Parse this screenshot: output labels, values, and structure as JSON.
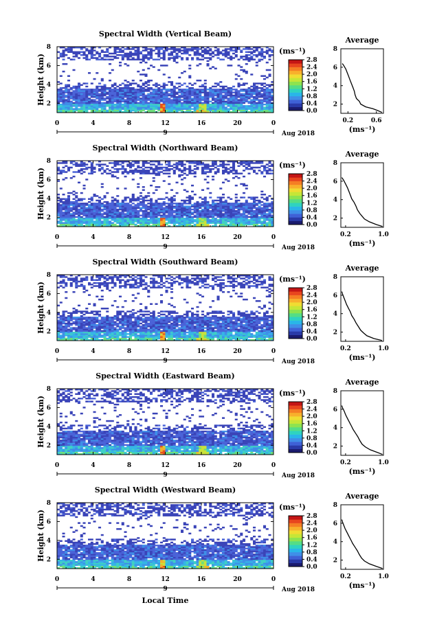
{
  "figure": {
    "xlabel": "Local Time"
  },
  "chart_data": [
    {
      "type": "heatmap",
      "title": "Spectral Width (Vertical Beam)",
      "ylabel": "Height (km)",
      "ylim": [
        1,
        8
      ],
      "yticks": [
        2,
        4,
        6,
        8
      ],
      "xlim": [
        0,
        24
      ],
      "xticks": [
        "0",
        "4",
        "8",
        "12",
        "16",
        "20",
        "0"
      ],
      "date_day": "9",
      "date_label": "Aug 2018",
      "colorbar": {
        "unit": "(ms⁻¹)",
        "ticks": [
          "0.0",
          "0.4",
          "0.8",
          "1.2",
          "1.6",
          "2.0",
          "2.4",
          "2.8"
        ]
      },
      "profile": {
        "title": "Average",
        "xlabel": "(ms⁻¹)",
        "xlim": [
          0.1,
          0.7
        ],
        "xticks": [
          "0.2",
          "0.6"
        ],
        "ylim": [
          1,
          8
        ],
        "yticks": [
          "2",
          "4",
          "6",
          "8"
        ],
        "points": [
          [
            0.68,
            1.1
          ],
          [
            0.62,
            1.3
          ],
          [
            0.55,
            1.5
          ],
          [
            0.45,
            1.7
          ],
          [
            0.38,
            2.0
          ],
          [
            0.36,
            2.3
          ],
          [
            0.32,
            2.6
          ],
          [
            0.3,
            3.0
          ],
          [
            0.29,
            3.4
          ],
          [
            0.27,
            3.8
          ],
          [
            0.25,
            4.2
          ],
          [
            0.23,
            4.6
          ],
          [
            0.21,
            5.0
          ],
          [
            0.19,
            5.4
          ],
          [
            0.17,
            5.8
          ],
          [
            0.14,
            6.2
          ],
          [
            0.12,
            6.4
          ]
        ]
      }
    },
    {
      "type": "heatmap",
      "title": "Spectral Width (Northward Beam)",
      "ylabel": "Height (km)",
      "ylim": [
        1,
        8
      ],
      "yticks": [
        2,
        4,
        6,
        8
      ],
      "xlim": [
        0,
        24
      ],
      "xticks": [
        "0",
        "4",
        "8",
        "12",
        "16",
        "20",
        "0"
      ],
      "date_day": "9",
      "date_label": "Aug 2018",
      "colorbar": {
        "unit": "(ms⁻¹)",
        "ticks": [
          "0.0",
          "0.4",
          "0.8",
          "1.2",
          "1.6",
          "2.0",
          "2.4",
          "2.8"
        ]
      },
      "profile": {
        "title": "Average",
        "xlabel": "(ms⁻¹)",
        "xlim": [
          0.1,
          1.0
        ],
        "xticks": [
          "0.2",
          "1.0"
        ],
        "ylim": [
          1,
          8
        ],
        "yticks": [
          "2",
          "4",
          "6",
          "8"
        ],
        "points": [
          [
            0.98,
            1.1
          ],
          [
            0.85,
            1.3
          ],
          [
            0.7,
            1.6
          ],
          [
            0.6,
            1.9
          ],
          [
            0.55,
            2.2
          ],
          [
            0.5,
            2.5
          ],
          [
            0.45,
            2.9
          ],
          [
            0.42,
            3.3
          ],
          [
            0.38,
            3.7
          ],
          [
            0.33,
            4.1
          ],
          [
            0.3,
            4.5
          ],
          [
            0.27,
            4.9
          ],
          [
            0.24,
            5.3
          ],
          [
            0.2,
            5.7
          ],
          [
            0.16,
            6.1
          ],
          [
            0.12,
            6.4
          ]
        ]
      }
    },
    {
      "type": "heatmap",
      "title": "Spectral Width (Southward Beam)",
      "ylabel": "Height (km)",
      "ylim": [
        1,
        8
      ],
      "yticks": [
        2,
        4,
        6,
        8
      ],
      "xlim": [
        0,
        24
      ],
      "xticks": [
        "0",
        "4",
        "8",
        "12",
        "16",
        "20",
        "0"
      ],
      "date_day": "9",
      "date_label": "Aug 2018",
      "colorbar": {
        "unit": "(ms⁻¹)",
        "ticks": [
          "0.0",
          "0.4",
          "0.8",
          "1.2",
          "1.6",
          "2.0",
          "2.4",
          "2.8"
        ]
      },
      "profile": {
        "title": "Average",
        "xlabel": "(ms⁻¹)",
        "xlim": [
          0.1,
          1.0
        ],
        "xticks": [
          "0.2",
          "1.0"
        ],
        "ylim": [
          1,
          8
        ],
        "yticks": [
          "2",
          "4",
          "6",
          "8"
        ],
        "points": [
          [
            0.97,
            1.1
          ],
          [
            0.8,
            1.3
          ],
          [
            0.65,
            1.6
          ],
          [
            0.58,
            1.9
          ],
          [
            0.52,
            2.2
          ],
          [
            0.47,
            2.6
          ],
          [
            0.42,
            3.0
          ],
          [
            0.38,
            3.4
          ],
          [
            0.33,
            3.8
          ],
          [
            0.3,
            4.2
          ],
          [
            0.26,
            4.6
          ],
          [
            0.22,
            5.0
          ],
          [
            0.19,
            5.4
          ],
          [
            0.16,
            5.8
          ],
          [
            0.13,
            6.2
          ],
          [
            0.12,
            6.4
          ]
        ]
      }
    },
    {
      "type": "heatmap",
      "title": "Spectral Width (Eastward Beam)",
      "ylabel": "Height (km)",
      "ylim": [
        1,
        8
      ],
      "yticks": [
        2,
        4,
        6,
        8
      ],
      "xlim": [
        0,
        24
      ],
      "xticks": [
        "0",
        "4",
        "8",
        "12",
        "16",
        "20",
        "0"
      ],
      "date_day": "9",
      "date_label": "Aug 2018",
      "colorbar": {
        "unit": "(ms⁻¹)",
        "ticks": [
          "0.0",
          "0.4",
          "0.8",
          "1.2",
          "1.6",
          "2.0",
          "2.4",
          "2.8"
        ]
      },
      "profile": {
        "title": "Average",
        "xlabel": "(ms⁻¹)",
        "xlim": [
          0.1,
          1.0
        ],
        "xticks": [
          "0.2",
          "1.0"
        ],
        "ylim": [
          1,
          8
        ],
        "yticks": [
          "2",
          "4",
          "6",
          "8"
        ],
        "points": [
          [
            0.98,
            1.1
          ],
          [
            0.88,
            1.3
          ],
          [
            0.72,
            1.6
          ],
          [
            0.62,
            1.9
          ],
          [
            0.55,
            2.2
          ],
          [
            0.5,
            2.6
          ],
          [
            0.46,
            3.0
          ],
          [
            0.41,
            3.4
          ],
          [
            0.36,
            3.8
          ],
          [
            0.32,
            4.2
          ],
          [
            0.28,
            4.6
          ],
          [
            0.24,
            5.0
          ],
          [
            0.2,
            5.4
          ],
          [
            0.17,
            5.8
          ],
          [
            0.13,
            6.2
          ],
          [
            0.12,
            6.4
          ]
        ]
      }
    },
    {
      "type": "heatmap",
      "title": "Spectral Width (Westward Beam)",
      "ylabel": "Height (km)",
      "ylim": [
        1,
        8
      ],
      "yticks": [
        2,
        4,
        6,
        8
      ],
      "xlim": [
        0,
        24
      ],
      "xticks": [
        "0",
        "4",
        "8",
        "12",
        "16",
        "20",
        "0"
      ],
      "date_day": "9",
      "date_label": "Aug 2018",
      "colorbar": {
        "unit": "(ms⁻¹)",
        "ticks": [
          "0.0",
          "0.4",
          "0.8",
          "1.2",
          "1.6",
          "2.0",
          "2.4",
          "2.8"
        ]
      },
      "profile": {
        "title": "Average",
        "xlabel": "(ms⁻¹)",
        "xlim": [
          0.1,
          1.0
        ],
        "xticks": [
          "0.2",
          "1.0"
        ],
        "ylim": [
          1,
          8
        ],
        "yticks": [
          "2",
          "4",
          "6",
          "8"
        ],
        "points": [
          [
            0.98,
            1.1
          ],
          [
            0.86,
            1.3
          ],
          [
            0.7,
            1.6
          ],
          [
            0.6,
            1.9
          ],
          [
            0.54,
            2.2
          ],
          [
            0.49,
            2.6
          ],
          [
            0.45,
            3.0
          ],
          [
            0.4,
            3.4
          ],
          [
            0.35,
            3.8
          ],
          [
            0.31,
            4.2
          ],
          [
            0.27,
            4.6
          ],
          [
            0.23,
            5.0
          ],
          [
            0.19,
            5.4
          ],
          [
            0.16,
            5.8
          ],
          [
            0.13,
            6.2
          ],
          [
            0.12,
            6.4
          ]
        ]
      }
    }
  ]
}
